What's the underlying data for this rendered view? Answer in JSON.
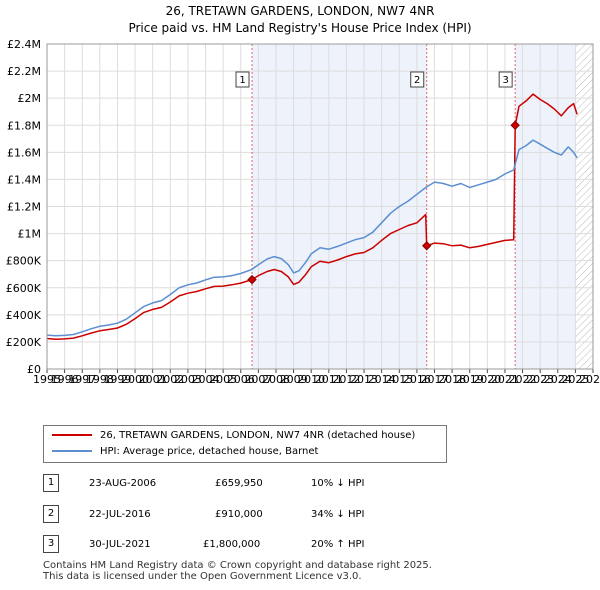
{
  "title": "26, TRETAWN GARDENS, LONDON, NW7 4NR",
  "subtitle": "Price paid vs. HM Land Registry's House Price Index (HPI)",
  "colors": {
    "property": "#cc0000",
    "hpi": "#5b8fd0",
    "shade": "#eef2fb",
    "grid": "#dddddd"
  },
  "legend": {
    "property": "26, TRETAWN GARDENS, LONDON, NW7 4NR (detached house)",
    "hpi": "HPI: Average price, detached house, Barnet"
  },
  "sales": [
    {
      "num": "1",
      "date": "23-AUG-2006",
      "price": "£659,950",
      "hpi": "10% ↓ HPI"
    },
    {
      "num": "2",
      "date": "22-JUL-2016",
      "price": "£910,000",
      "hpi": "34% ↓ HPI"
    },
    {
      "num": "3",
      "date": "30-JUL-2021",
      "price": "£1,800,000",
      "hpi": "20% ↑ HPI"
    }
  ],
  "footer": {
    "line1": "Contains HM Land Registry data © Crown copyright and database right 2025.",
    "line2": "This data is licensed under the Open Government Licence v3.0."
  },
  "chart_data": {
    "type": "line",
    "x_range": [
      1995,
      2026
    ],
    "y_range": [
      0,
      2400000
    ],
    "x_ticks": [
      1995,
      1996,
      1997,
      1998,
      1999,
      2000,
      2001,
      2002,
      2003,
      2004,
      2005,
      2006,
      2007,
      2008,
      2009,
      2010,
      2011,
      2012,
      2013,
      2014,
      2015,
      2016,
      2017,
      2018,
      2019,
      2020,
      2021,
      2022,
      2023,
      2024,
      2025,
      2026
    ],
    "y_ticks": [
      {
        "value": 0,
        "label": "£0"
      },
      {
        "value": 200000,
        "label": "£200K"
      },
      {
        "value": 400000,
        "label": "£400K"
      },
      {
        "value": 600000,
        "label": "£600K"
      },
      {
        "value": 800000,
        "label": "£800K"
      },
      {
        "value": 1000000,
        "label": "£1M"
      },
      {
        "value": 1200000,
        "label": "£1.2M"
      },
      {
        "value": 1400000,
        "label": "£1.4M"
      },
      {
        "value": 1600000,
        "label": "£1.6M"
      },
      {
        "value": 1800000,
        "label": "£1.8M"
      },
      {
        "value": 2000000,
        "label": "£2M"
      },
      {
        "value": 2200000,
        "label": "£2.2M"
      },
      {
        "value": 2400000,
        "label": "£2.4M"
      }
    ],
    "hatch_after": 2025.0,
    "sale_markers": [
      {
        "label": "1",
        "x": 2006.64,
        "y": 659950
      },
      {
        "label": "2",
        "x": 2016.56,
        "y": 910000
      },
      {
        "label": "3",
        "x": 2021.58,
        "y": 1800000
      }
    ],
    "series": [
      {
        "name": "property",
        "points": [
          [
            1995.0,
            225000
          ],
          [
            1995.5,
            220000
          ],
          [
            1996.0,
            222000
          ],
          [
            1996.5,
            228000
          ],
          [
            1997.0,
            245000
          ],
          [
            1997.5,
            265000
          ],
          [
            1998.0,
            282000
          ],
          [
            1998.5,
            292000
          ],
          [
            1999.0,
            303000
          ],
          [
            1999.5,
            330000
          ],
          [
            2000.0,
            372000
          ],
          [
            2000.5,
            418000
          ],
          [
            2001.0,
            440000
          ],
          [
            2001.5,
            455000
          ],
          [
            2002.0,
            495000
          ],
          [
            2002.5,
            540000
          ],
          [
            2003.0,
            560000
          ],
          [
            2003.5,
            572000
          ],
          [
            2004.0,
            592000
          ],
          [
            2004.5,
            610000
          ],
          [
            2005.0,
            612000
          ],
          [
            2005.5,
            622000
          ],
          [
            2006.0,
            634000
          ],
          [
            2006.64,
            659950
          ],
          [
            2007.0,
            690000
          ],
          [
            2007.5,
            720000
          ],
          [
            2007.9,
            735000
          ],
          [
            2008.3,
            720000
          ],
          [
            2008.7,
            680000
          ],
          [
            2009.0,
            625000
          ],
          [
            2009.3,
            640000
          ],
          [
            2009.7,
            700000
          ],
          [
            2010.0,
            755000
          ],
          [
            2010.5,
            795000
          ],
          [
            2011.0,
            785000
          ],
          [
            2011.5,
            805000
          ],
          [
            2012.0,
            830000
          ],
          [
            2012.5,
            850000
          ],
          [
            2013.0,
            860000
          ],
          [
            2013.5,
            895000
          ],
          [
            2014.0,
            950000
          ],
          [
            2014.5,
            1000000
          ],
          [
            2015.0,
            1030000
          ],
          [
            2015.5,
            1060000
          ],
          [
            2016.0,
            1080000
          ],
          [
            2016.5,
            1140000
          ],
          [
            2016.56,
            910000
          ],
          [
            2017.0,
            930000
          ],
          [
            2017.5,
            925000
          ],
          [
            2018.0,
            910000
          ],
          [
            2018.5,
            915000
          ],
          [
            2019.0,
            895000
          ],
          [
            2019.5,
            905000
          ],
          [
            2020.0,
            920000
          ],
          [
            2020.5,
            935000
          ],
          [
            2021.0,
            950000
          ],
          [
            2021.5,
            955000
          ],
          [
            2021.58,
            1800000
          ],
          [
            2021.8,
            1940000
          ],
          [
            2022.2,
            1980000
          ],
          [
            2022.6,
            2030000
          ],
          [
            2023.0,
            1990000
          ],
          [
            2023.4,
            1960000
          ],
          [
            2023.8,
            1920000
          ],
          [
            2024.2,
            1870000
          ],
          [
            2024.6,
            1930000
          ],
          [
            2024.9,
            1960000
          ],
          [
            2025.1,
            1880000
          ]
        ]
      },
      {
        "name": "hpi",
        "points": [
          [
            1995.0,
            250000
          ],
          [
            1995.5,
            245000
          ],
          [
            1996.0,
            248000
          ],
          [
            1996.5,
            255000
          ],
          [
            1997.0,
            275000
          ],
          [
            1997.5,
            297000
          ],
          [
            1998.0,
            315000
          ],
          [
            1998.5,
            325000
          ],
          [
            1999.0,
            338000
          ],
          [
            1999.5,
            368000
          ],
          [
            2000.0,
            415000
          ],
          [
            2000.5,
            462000
          ],
          [
            2001.0,
            488000
          ],
          [
            2001.5,
            505000
          ],
          [
            2002.0,
            550000
          ],
          [
            2002.5,
            600000
          ],
          [
            2003.0,
            622000
          ],
          [
            2003.5,
            635000
          ],
          [
            2004.0,
            658000
          ],
          [
            2004.5,
            678000
          ],
          [
            2005.0,
            680000
          ],
          [
            2005.5,
            690000
          ],
          [
            2006.0,
            705000
          ],
          [
            2006.6,
            733000
          ],
          [
            2007.0,
            770000
          ],
          [
            2007.5,
            812000
          ],
          [
            2007.9,
            830000
          ],
          [
            2008.3,
            815000
          ],
          [
            2008.7,
            770000
          ],
          [
            2009.0,
            710000
          ],
          [
            2009.3,
            725000
          ],
          [
            2009.7,
            790000
          ],
          [
            2010.0,
            850000
          ],
          [
            2010.5,
            895000
          ],
          [
            2011.0,
            885000
          ],
          [
            2011.5,
            905000
          ],
          [
            2012.0,
            930000
          ],
          [
            2012.5,
            955000
          ],
          [
            2013.0,
            970000
          ],
          [
            2013.5,
            1010000
          ],
          [
            2014.0,
            1080000
          ],
          [
            2014.5,
            1150000
          ],
          [
            2014.8,
            1180000
          ],
          [
            2015.0,
            1200000
          ],
          [
            2015.5,
            1240000
          ],
          [
            2016.0,
            1290000
          ],
          [
            2016.5,
            1340000
          ],
          [
            2017.0,
            1380000
          ],
          [
            2017.5,
            1370000
          ],
          [
            2018.0,
            1350000
          ],
          [
            2018.5,
            1370000
          ],
          [
            2019.0,
            1340000
          ],
          [
            2019.5,
            1360000
          ],
          [
            2020.0,
            1380000
          ],
          [
            2020.5,
            1400000
          ],
          [
            2021.0,
            1440000
          ],
          [
            2021.5,
            1470000
          ],
          [
            2021.8,
            1620000
          ],
          [
            2022.2,
            1650000
          ],
          [
            2022.6,
            1690000
          ],
          [
            2023.0,
            1660000
          ],
          [
            2023.4,
            1630000
          ],
          [
            2023.8,
            1600000
          ],
          [
            2024.2,
            1580000
          ],
          [
            2024.6,
            1640000
          ],
          [
            2024.9,
            1600000
          ],
          [
            2025.1,
            1560000
          ]
        ]
      }
    ]
  }
}
